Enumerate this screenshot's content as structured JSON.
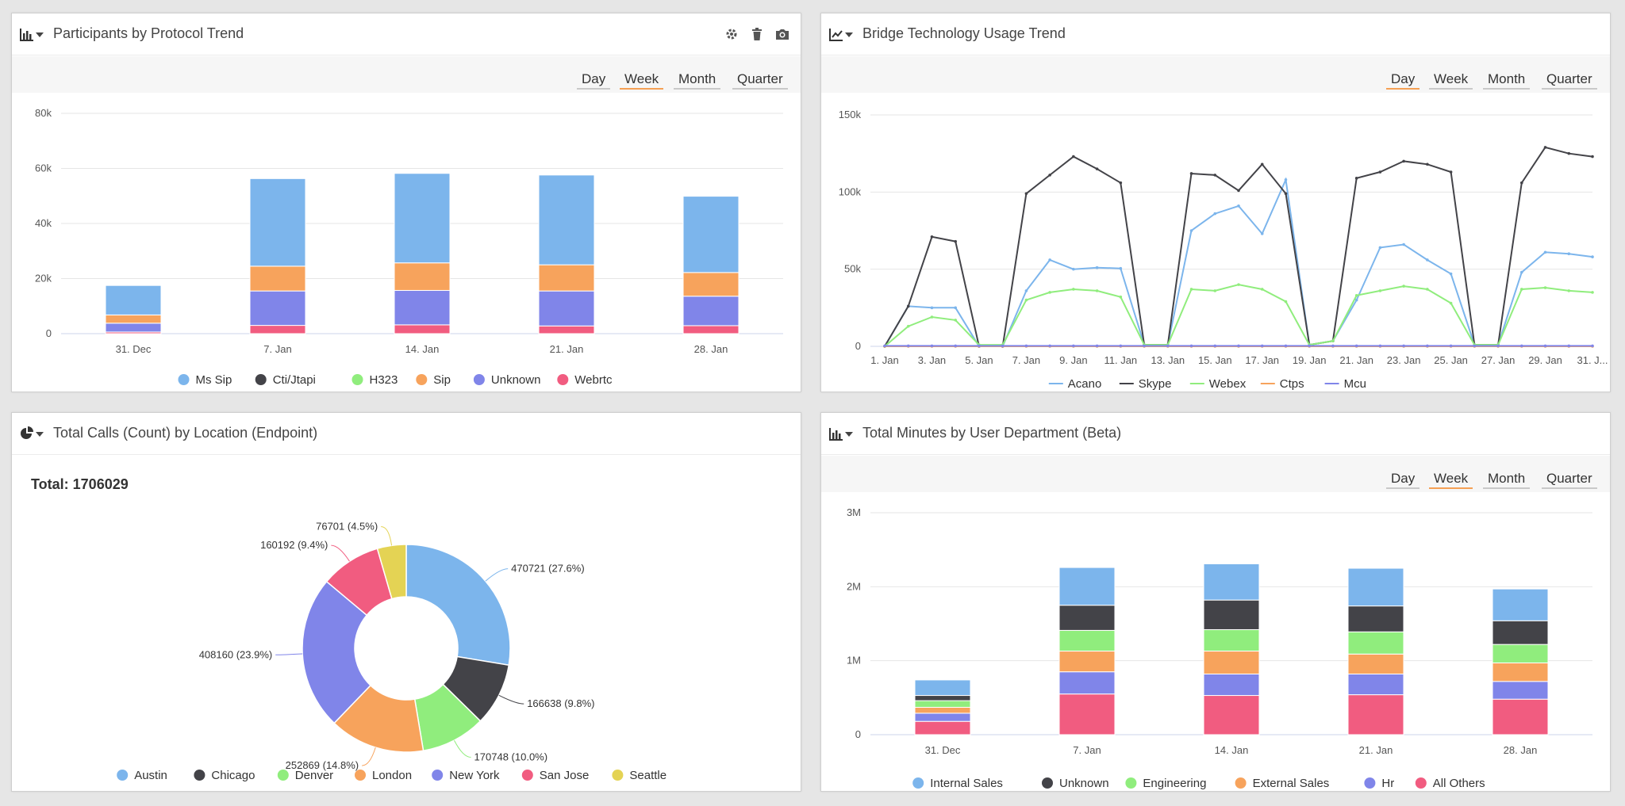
{
  "range_labels": {
    "day": "Day",
    "week": "Week",
    "month": "Month",
    "quarter": "Quarter"
  },
  "panels": {
    "protocol": {
      "title": "Participants by Protocol Trend",
      "selected_range": "Week",
      "icon": "bar-chart-icon",
      "actions": [
        "gear-icon",
        "trash-icon",
        "camera-icon"
      ]
    },
    "bridge": {
      "title": "Bridge Technology Usage Trend",
      "selected_range": "Day",
      "icon": "line-chart-icon"
    },
    "location": {
      "title": "Total Calls (Count) by Location (Endpoint)",
      "total_text": "Total: 1706029",
      "icon": "pie-chart-icon"
    },
    "department": {
      "title": "Total Minutes by User Department (Beta)",
      "selected_range": "Week",
      "icon": "bar-chart-icon"
    }
  },
  "chart_data": [
    {
      "id": "protocol",
      "type": "bar",
      "stacked": true,
      "categories": [
        "31. Dec",
        "7. Jan",
        "14. Jan",
        "21. Jan",
        "28. Jan"
      ],
      "ylim": [
        0,
        80000
      ],
      "yticks": [
        0,
        20000,
        40000,
        60000,
        80000
      ],
      "ytick_labels": [
        "0",
        "20k",
        "40k",
        "60k",
        "80k"
      ],
      "grid": true,
      "legend_position": "bottom",
      "series": [
        {
          "name": "Webrtc",
          "color": "#f15c80",
          "values": [
            600,
            3000,
            3200,
            2800,
            2900
          ]
        },
        {
          "name": "Unknown",
          "color": "#8085e9",
          "values": [
            3200,
            12500,
            12500,
            12700,
            10700
          ]
        },
        {
          "name": "Sip",
          "color": "#f7a35c",
          "values": [
            3000,
            9000,
            10000,
            9500,
            8600
          ]
        },
        {
          "name": "H323",
          "color": "#90ed7d",
          "values": [
            0,
            0,
            0,
            0,
            0
          ]
        },
        {
          "name": "Cti/Jtapi",
          "color": "#434348",
          "values": [
            0,
            0,
            0,
            0,
            0
          ]
        },
        {
          "name": "Ms Sip",
          "color": "#7cb5ec",
          "values": [
            10700,
            31800,
            32500,
            32600,
            27700
          ]
        }
      ],
      "legend_order": [
        "Ms Sip",
        "Cti/Jtapi",
        "H323",
        "Sip",
        "Unknown",
        "Webrtc"
      ]
    },
    {
      "id": "bridge",
      "type": "line",
      "x_start_day": 1,
      "x_day_count": 31,
      "xtick_labels": [
        "1. Jan",
        "3. Jan",
        "5. Jan",
        "7. Jan",
        "9. Jan",
        "11. Jan",
        "13. Jan",
        "15. Jan",
        "17. Jan",
        "19. Jan",
        "21. Jan",
        "23. Jan",
        "25. Jan",
        "27. Jan",
        "29. Jan",
        "31. J..."
      ],
      "ylim": [
        0,
        150000
      ],
      "yticks": [
        0,
        50000,
        100000,
        150000
      ],
      "ytick_labels": [
        "0",
        "50k",
        "100k",
        "150k"
      ],
      "grid": true,
      "legend_position": "bottom",
      "series": [
        {
          "name": "Acano",
          "color": "#7cb5ec",
          "values": [
            0,
            26000,
            25000,
            25000,
            0,
            0,
            36000,
            56000,
            50000,
            51000,
            50500,
            1000,
            1000,
            75000,
            86000,
            91000,
            73000,
            108000,
            1000,
            3500,
            30000,
            64000,
            66000,
            56000,
            47000,
            1000,
            1000,
            48000,
            61000,
            60000,
            58000
          ]
        },
        {
          "name": "Skype",
          "color": "#434348",
          "values": [
            0,
            26000,
            71000,
            68000,
            0,
            0,
            99000,
            111000,
            123000,
            115000,
            106000,
            1000,
            1000,
            112000,
            111000,
            101000,
            118000,
            99000,
            1000,
            3500,
            109000,
            113000,
            120000,
            118000,
            113000,
            1000,
            1000,
            106000,
            129000,
            125000,
            123000
          ]
        },
        {
          "name": "Webex",
          "color": "#90ed7d",
          "values": [
            0,
            13000,
            19000,
            17000,
            1000,
            1000,
            30000,
            35000,
            37000,
            36000,
            32000,
            1000,
            1000,
            37000,
            36000,
            40000,
            37000,
            29000,
            1000,
            3500,
            33000,
            36000,
            39000,
            37000,
            28000,
            1000,
            1000,
            37000,
            38000,
            36000,
            35000
          ]
        },
        {
          "name": "Ctps",
          "color": "#f7a35c",
          "values": [
            0,
            0,
            0,
            0,
            0,
            0,
            0,
            0,
            0,
            0,
            0,
            0,
            0,
            0,
            0,
            0,
            0,
            0,
            0,
            0,
            0,
            0,
            0,
            0,
            0,
            0,
            0,
            0,
            0,
            0,
            0
          ]
        },
        {
          "name": "Mcu",
          "color": "#8085e9",
          "values": [
            300,
            300,
            300,
            300,
            300,
            300,
            300,
            300,
            300,
            300,
            300,
            300,
            300,
            300,
            300,
            300,
            300,
            300,
            300,
            300,
            300,
            300,
            300,
            300,
            300,
            300,
            300,
            300,
            300,
            300,
            300
          ]
        }
      ]
    },
    {
      "id": "location",
      "type": "pie",
      "donut": true,
      "total": 1706029,
      "legend_position": "bottom",
      "slices": [
        {
          "name": "Austin",
          "value": 470721,
          "label": "470721 (27.6%)",
          "color": "#7cb5ec"
        },
        {
          "name": "Chicago",
          "value": 166638,
          "label": "166638 (9.8%)",
          "color": "#434348"
        },
        {
          "name": "Denver",
          "value": 170748,
          "label": "170748 (10.0%)",
          "color": "#90ed7d"
        },
        {
          "name": "London",
          "value": 252869,
          "label": "252869 (14.8%)",
          "color": "#f7a35c"
        },
        {
          "name": "New York",
          "value": 408160,
          "label": "408160 (23.9%)",
          "color": "#8085e9"
        },
        {
          "name": "San Jose",
          "value": 160192,
          "label": "160192 (9.4%)",
          "color": "#f15c80"
        },
        {
          "name": "Seattle",
          "value": 76701,
          "label": "76701 (4.5%)",
          "color": "#e4d354"
        }
      ]
    },
    {
      "id": "department",
      "type": "bar",
      "stacked": true,
      "categories": [
        "31. Dec",
        "7. Jan",
        "14. Jan",
        "21. Jan",
        "28. Jan"
      ],
      "ylim": [
        0,
        3000000
      ],
      "yticks": [
        0,
        1000000,
        2000000,
        3000000
      ],
      "ytick_labels": [
        "0",
        "1M",
        "2M",
        "3M"
      ],
      "grid": true,
      "legend_position": "bottom",
      "series": [
        {
          "name": "All Others",
          "color": "#f15c80",
          "values": [
            180000,
            550000,
            530000,
            540000,
            480000
          ]
        },
        {
          "name": "Hr",
          "color": "#8085e9",
          "values": [
            110000,
            300000,
            290000,
            280000,
            240000
          ]
        },
        {
          "name": "External Sales",
          "color": "#f7a35c",
          "values": [
            80000,
            280000,
            310000,
            270000,
            250000
          ]
        },
        {
          "name": "Engineering",
          "color": "#90ed7d",
          "values": [
            90000,
            280000,
            290000,
            300000,
            250000
          ]
        },
        {
          "name": "Unknown",
          "color": "#434348",
          "values": [
            70000,
            340000,
            400000,
            350000,
            320000
          ]
        },
        {
          "name": "Internal Sales",
          "color": "#7cb5ec",
          "values": [
            210000,
            510000,
            490000,
            510000,
            430000
          ]
        }
      ],
      "legend_order": [
        "Internal Sales",
        "Unknown",
        "Engineering",
        "External Sales",
        "Hr",
        "All Others"
      ]
    }
  ]
}
